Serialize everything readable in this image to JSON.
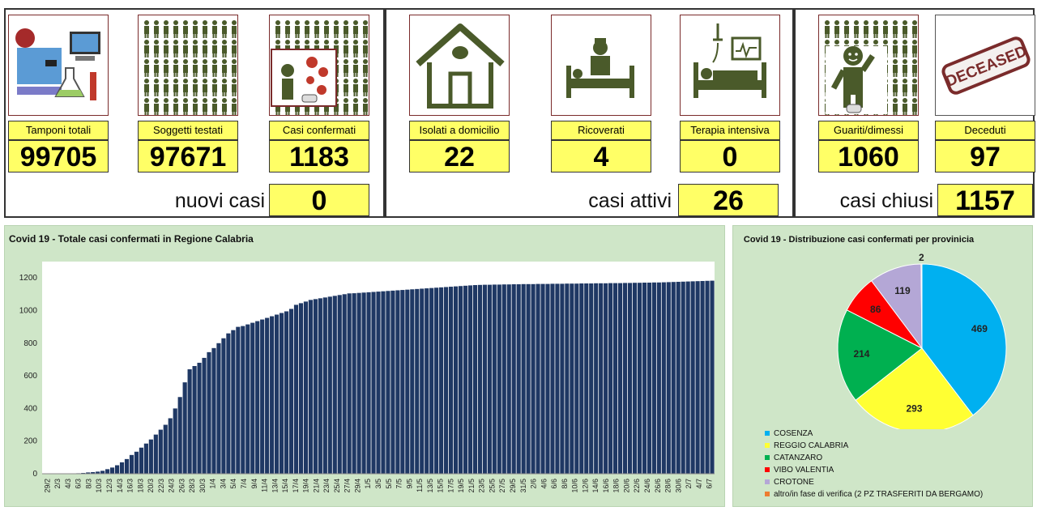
{
  "cards": [
    {
      "id": "tamponi",
      "label": "Tamponi totali",
      "value": "99705",
      "icon": "lab-equipment-icon"
    },
    {
      "id": "soggetti",
      "label": "Soggetti testati",
      "value": "97671",
      "icon": "people-grid-icon"
    },
    {
      "id": "confermati",
      "label": "Casi confermati",
      "value": "1183",
      "icon": "virus-infection-icon"
    },
    {
      "id": "isolati",
      "label": "Isolati a domicilio",
      "value": "22",
      "icon": "house-icon"
    },
    {
      "id": "ricoverati",
      "label": "Ricoverati",
      "value": "4",
      "icon": "hospital-bed-icon"
    },
    {
      "id": "terapia",
      "label": "Terapia intensiva",
      "value": "0",
      "icon": "intensive-care-icon"
    },
    {
      "id": "guariti",
      "label": "Guariti/dimessi",
      "value": "1060",
      "icon": "recovered-person-icon"
    },
    {
      "id": "deceduti",
      "label": "Deceduti",
      "value": "97",
      "icon": "deceased-stamp-icon"
    }
  ],
  "summary": {
    "nuovi_label": "nuovi casi",
    "nuovi_value": "0",
    "attivi_label": "casi attivi",
    "attivi_value": "26",
    "chiusi_label": "casi chiusi",
    "chiusi_value": "1157"
  },
  "stamp_text": "DECEASED",
  "chart_data": [
    {
      "type": "bar",
      "title": "Covid 19 - Totale casi confermati in Regione Calabria",
      "ylim": [
        0,
        1300
      ],
      "yticks": [
        0,
        200,
        400,
        600,
        800,
        1000,
        1200
      ],
      "grid": false,
      "bar_color": "#1f3864",
      "tick_labels": [
        "29/2",
        "2/3",
        "4/3",
        "6/3",
        "8/3",
        "10/3",
        "12/3",
        "14/3",
        "16/3",
        "18/3",
        "20/3",
        "22/3",
        "24/3",
        "26/3",
        "28/3",
        "30/3",
        "1/4",
        "3/4",
        "5/4",
        "7/4",
        "9/4",
        "11/4",
        "13/4",
        "15/4",
        "17/4",
        "19/4",
        "21/4",
        "23/4",
        "25/4",
        "27/4",
        "29/4",
        "1/5",
        "3/5",
        "5/5",
        "7/5",
        "9/5",
        "11/5",
        "13/5",
        "15/5",
        "17/5",
        "19/5",
        "21/5",
        "23/5",
        "25/5",
        "27/5",
        "29/5",
        "31/5",
        "2/6",
        "4/6",
        "6/6",
        "8/6",
        "10/6",
        "12/6",
        "14/6",
        "16/6",
        "18/6",
        "20/6",
        "22/6",
        "24/6",
        "26/6",
        "28/6",
        "30/6",
        "2/7",
        "4/7",
        "6/7"
      ],
      "values": [
        1,
        1,
        1,
        1,
        1,
        1,
        1,
        3,
        5,
        8,
        10,
        13,
        18,
        28,
        38,
        52,
        70,
        90,
        115,
        135,
        160,
        185,
        210,
        240,
        270,
        300,
        340,
        400,
        470,
        560,
        640,
        660,
        680,
        710,
        745,
        770,
        800,
        830,
        860,
        880,
        900,
        905,
        915,
        925,
        935,
        945,
        955,
        965,
        975,
        985,
        995,
        1010,
        1035,
        1045,
        1055,
        1065,
        1070,
        1075,
        1080,
        1085,
        1090,
        1095,
        1100,
        1105,
        1106,
        1108,
        1110,
        1112,
        1114,
        1116,
        1118,
        1120,
        1122,
        1124,
        1126,
        1128,
        1130,
        1132,
        1134,
        1136,
        1138,
        1140,
        1142,
        1144,
        1146,
        1148,
        1150,
        1152,
        1154,
        1156,
        1157,
        1158,
        1158,
        1159,
        1159,
        1160,
        1160,
        1161,
        1161,
        1162,
        1162,
        1162,
        1163,
        1163,
        1163,
        1164,
        1164,
        1164,
        1165,
        1165,
        1165,
        1166,
        1166,
        1166,
        1167,
        1167,
        1167,
        1168,
        1168,
        1168,
        1169,
        1169,
        1170,
        1170,
        1171,
        1171,
        1172,
        1172,
        1173,
        1174,
        1175,
        1176,
        1177,
        1178,
        1179,
        1180,
        1181,
        1182,
        1183
      ]
    },
    {
      "type": "pie",
      "title": "Covid 19 - Distribuzione casi confermati per provinicia",
      "slices": [
        {
          "name": "COSENZA",
          "value": 469,
          "color": "#00b0f0"
        },
        {
          "name": "REGGIO CALABRIA",
          "value": 293,
          "color": "#ffff33"
        },
        {
          "name": "CATANZARO",
          "value": 214,
          "color": "#00b050"
        },
        {
          "name": "VIBO VALENTIA",
          "value": 86,
          "color": "#ff0000"
        },
        {
          "name": "CROTONE",
          "value": 119,
          "color": "#b4a7d6"
        },
        {
          "name": "altro/in fase di verifica (2 PZ TRASFERITI DA BERGAMO)",
          "value": 2,
          "color": "#ed7d31"
        }
      ]
    }
  ]
}
